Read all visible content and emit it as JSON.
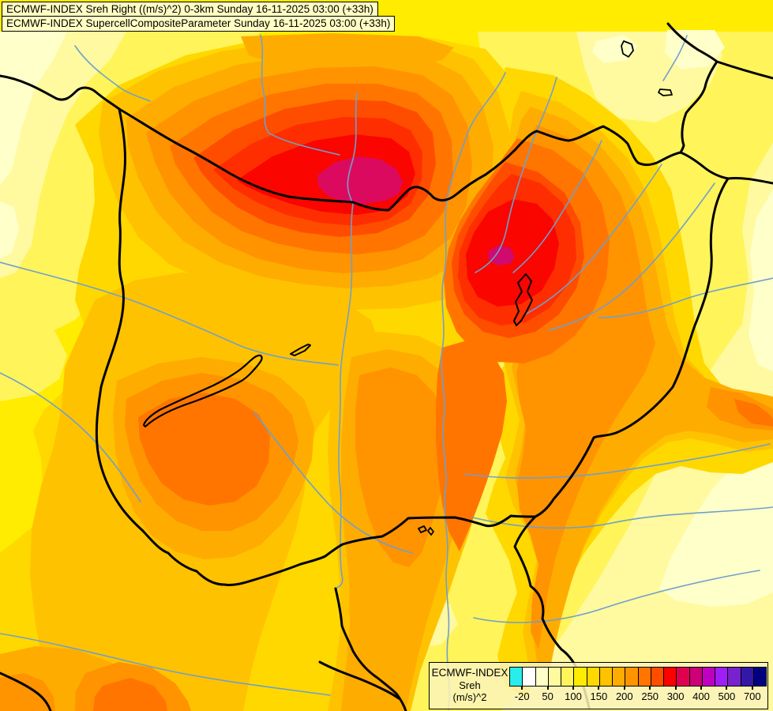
{
  "header": {
    "line1": "ECMWF-INDEX Sreh Right ((m/s)^2) 0-3km Sunday 16-11-2025 03:00 (+33h)",
    "line2": "ECMWF-INDEX SupercellCompositeParameter Sunday 16-11-2025 03:00 (+33h)"
  },
  "legend": {
    "label_lines": [
      "ECMWF-INDEX",
      "Sreh",
      "(m/s)^2"
    ],
    "ticks": [
      "-20",
      "50",
      "100",
      "150",
      "200",
      "250",
      "300",
      "400",
      "500",
      "700"
    ],
    "swatches": [
      "#29EDED",
      "#FFFFFF",
      "#FFFFC9",
      "#FFF9A0",
      "#FFF45A",
      "#FFEC00",
      "#FFD800",
      "#FFC200",
      "#FFAC00",
      "#FF9300",
      "#FF7500",
      "#FF4D00",
      "#FF0000",
      "#E00050",
      "#CC0077",
      "#C000C0",
      "#9E1EF5",
      "#7722CC",
      "#3318A8",
      "#000080"
    ]
  },
  "map": {
    "palette": {
      "cream": "#FFFFC9",
      "pale": "#FFF9A0",
      "lightyellow": "#FFF45A",
      "yellow": "#FFEC00",
      "gold": "#FFD800",
      "amber": "#FFC200",
      "orangeyellow": "#FFAC00",
      "orange": "#FF9300",
      "deeporange": "#FF7500",
      "orangered": "#FF4D00",
      "redorange": "#FF2E00",
      "red": "#FA0500",
      "crimson": "#DC0A5F",
      "pink": "#D00A6E",
      "river": "#6FA0CC",
      "border": "#000000"
    }
  }
}
